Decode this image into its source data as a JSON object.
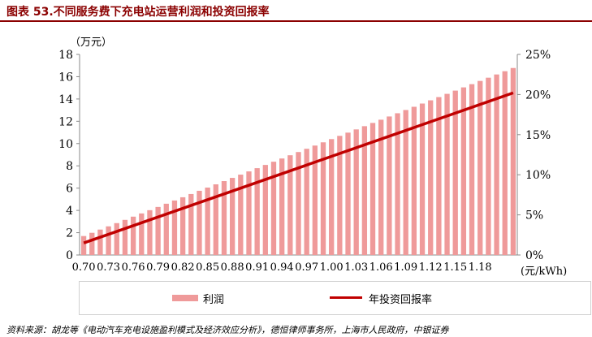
{
  "title": "图表 53.不同服务费下充电站运营利润和投资回报率",
  "source": "资料来源：胡龙等《电动汽车充电设施盈利模式及经济效应分析》，德恒律师事务所，上海市人民政府，中银证券",
  "chart_data": {
    "type": "bar",
    "y_unit": "（万元）",
    "x_unit": "(元/kWh)",
    "ylim": [
      0,
      18
    ],
    "y_ticks": [
      "0",
      "2",
      "4",
      "6",
      "8",
      "10",
      "12",
      "14",
      "16",
      "18"
    ],
    "y2lim": [
      0,
      25
    ],
    "y2_ticks": [
      "0%",
      "5%",
      "10%",
      "15%",
      "20%",
      "25%"
    ],
    "x_start": 0.7,
    "x_step": 0.01,
    "x_tick_labels": [
      "0.70",
      "0.73",
      "0.76",
      "0.79",
      "0.82",
      "0.85",
      "0.88",
      "0.91",
      "0.94",
      "0.97",
      "1.00",
      "1.03",
      "1.06",
      "1.09",
      "1.12",
      "1.15",
      "1.18"
    ],
    "legend_position": "bottom",
    "series": [
      {
        "name": "利润",
        "type": "bar",
        "axis": "left",
        "color": "#ef9a9a",
        "values": [
          1.7,
          1.99,
          2.28,
          2.57,
          2.86,
          3.15,
          3.44,
          3.73,
          4.02,
          4.31,
          4.6,
          4.89,
          5.18,
          5.47,
          5.76,
          6.05,
          6.34,
          6.63,
          6.92,
          7.21,
          7.5,
          7.79,
          8.08,
          8.37,
          8.66,
          8.95,
          9.24,
          9.53,
          9.82,
          10.11,
          10.4,
          10.69,
          10.98,
          11.27,
          11.56,
          11.85,
          12.14,
          12.43,
          12.72,
          13.01,
          13.3,
          13.59,
          13.88,
          14.17,
          14.46,
          14.75,
          15.04,
          15.33,
          15.62,
          15.91,
          16.2,
          16.49,
          16.78
        ]
      },
      {
        "name": "年投资回报率",
        "type": "line",
        "axis": "right",
        "color": "#c00000",
        "x": [
          0.7,
          1.22
        ],
        "values": [
          1.5,
          20.2
        ]
      }
    ]
  }
}
